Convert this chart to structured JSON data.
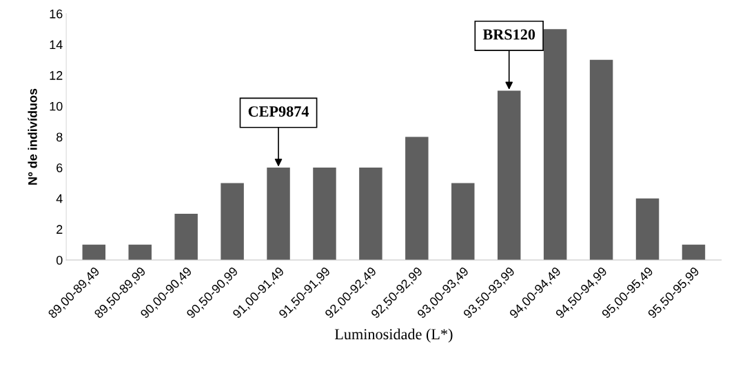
{
  "chart_data": {
    "type": "bar",
    "xlabel": "Luminosidade (L*)",
    "ylabel": "Nº de indivíduos",
    "categories": [
      "89,00-89,49",
      "89,50-89,99",
      "90,00-90,49",
      "90,50-90,99",
      "91,00-91,49",
      "91,50-91,99",
      "92,00-92,49",
      "92,50-92,99",
      "93,00-93,49",
      "93,50-93,99",
      "94,00-94,49",
      "94,50-94,99",
      "95,00-95,49",
      "95,50-95,99"
    ],
    "values": [
      1,
      1,
      3,
      5,
      6,
      6,
      6,
      8,
      5,
      11,
      15,
      13,
      4,
      1
    ],
    "color": "#5f5f5f",
    "ylim": [
      0,
      16
    ],
    "yticks": [
      0,
      2,
      4,
      6,
      8,
      10,
      12,
      14,
      16
    ],
    "annotations": [
      {
        "text": "CEP9874",
        "x": "91,00-91,49",
        "y": 6
      },
      {
        "text": "BRS120",
        "x": "93,50-93,99",
        "y": 11
      }
    ],
    "grid": false,
    "legend": false
  }
}
